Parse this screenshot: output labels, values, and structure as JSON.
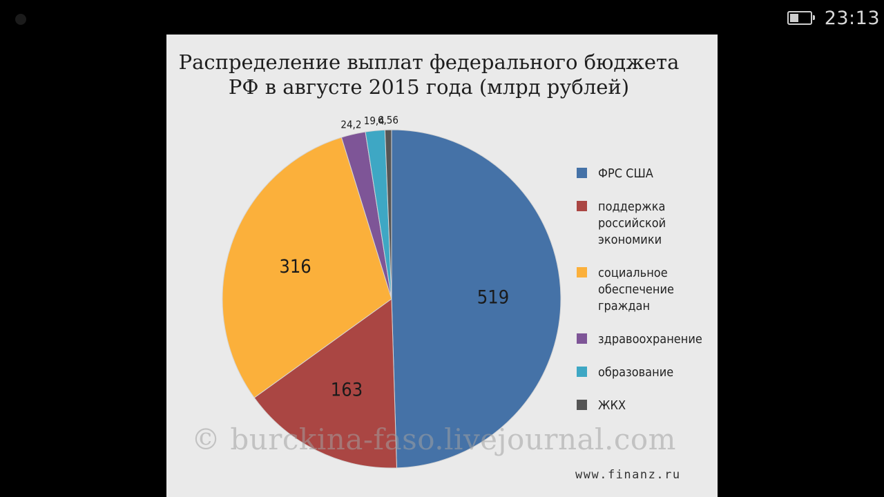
{
  "status_bar": {
    "time": "23:13",
    "battery_level": 0.45
  },
  "chart_data": {
    "type": "pie",
    "title_lines": [
      "Распределение выплат федерального бюджета",
      "РФ в августе 2015 года (млрд рублей)"
    ],
    "slices": [
      {
        "label": "ФРС США",
        "value": 519,
        "value_label": "519",
        "color": "#4572a7"
      },
      {
        "label": "поддержка российской экономики",
        "legend_text": "поддержка\nроссийской\nэкономики",
        "value": 163,
        "value_label": "163",
        "color": "#aa4643"
      },
      {
        "label": "социальное обеспечение граждан",
        "legend_text": "социальное\nобеспечение\nграждан",
        "value": 316,
        "value_label": "316",
        "color": "#fbb03b"
      },
      {
        "label": "здравоохранение",
        "value": 24.2,
        "value_label": "24,2",
        "color": "#7e5597"
      },
      {
        "label": "образование",
        "value": 19.4,
        "value_label": "19,4",
        "color": "#3ea7c4"
      },
      {
        "label": "ЖКХ",
        "value": 6.56,
        "value_label": "6,56",
        "color": "#555555"
      }
    ],
    "legend_position": "right"
  },
  "watermark": "© burckina-faso.livejournal.com",
  "source": "www.finanz.ru"
}
